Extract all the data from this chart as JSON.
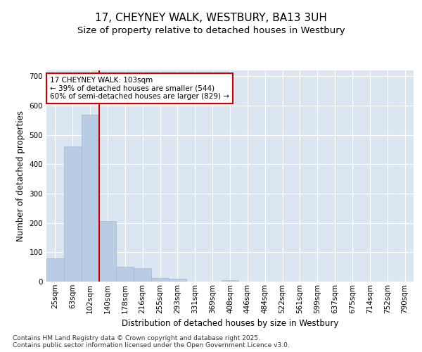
{
  "title_line1": "17, CHEYNEY WALK, WESTBURY, BA13 3UH",
  "title_line2": "Size of property relative to detached houses in Westbury",
  "xlabel": "Distribution of detached houses by size in Westbury",
  "ylabel": "Number of detached properties",
  "categories": [
    "25sqm",
    "63sqm",
    "102sqm",
    "140sqm",
    "178sqm",
    "216sqm",
    "255sqm",
    "293sqm",
    "331sqm",
    "369sqm",
    "408sqm",
    "446sqm",
    "484sqm",
    "522sqm",
    "561sqm",
    "599sqm",
    "637sqm",
    "675sqm",
    "714sqm",
    "752sqm",
    "790sqm"
  ],
  "values": [
    80,
    462,
    570,
    207,
    50,
    45,
    12,
    10,
    0,
    0,
    4,
    0,
    0,
    0,
    0,
    0,
    0,
    0,
    0,
    0,
    0
  ],
  "bar_color": "#b8cce4",
  "bar_edge_color": "#a0b8d0",
  "background_color": "#dce6f1",
  "grid_color": "#ffffff",
  "vline_x": 2.5,
  "vline_color": "#cc0000",
  "annotation_text": "17 CHEYNEY WALK: 103sqm\n← 39% of detached houses are smaller (544)\n60% of semi-detached houses are larger (829) →",
  "annotation_box_color": "#ffffff",
  "annotation_box_edge": "#cc0000",
  "ylim": [
    0,
    720
  ],
  "yticks": [
    0,
    100,
    200,
    300,
    400,
    500,
    600,
    700
  ],
  "footnote": "Contains HM Land Registry data © Crown copyright and database right 2025.\nContains public sector information licensed under the Open Government Licence v3.0.",
  "title_fontsize": 11,
  "subtitle_fontsize": 9.5,
  "axis_label_fontsize": 8.5,
  "tick_fontsize": 7.5,
  "annot_fontsize": 7.5,
  "footnote_fontsize": 6.5
}
